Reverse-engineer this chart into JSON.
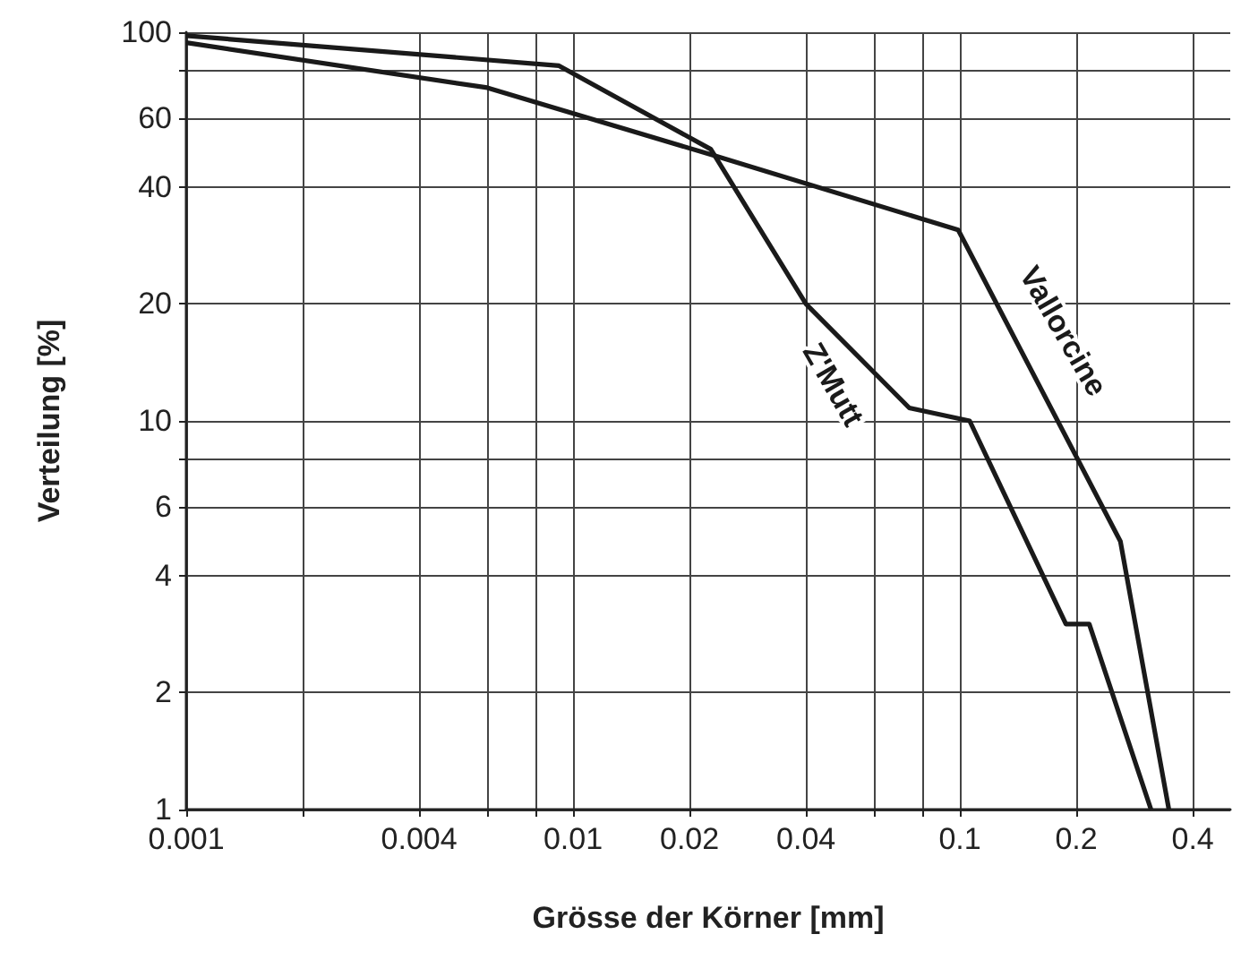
{
  "chart_data": {
    "type": "line",
    "xlabel": "Grösse der Körner [mm]",
    "ylabel": "Verteilung [%]",
    "series": [
      {
        "name": "Z'Mutt",
        "color": "#1a1a1a",
        "x": [
          0.001,
          0.0092,
          0.0227,
          0.04,
          0.074,
          0.106,
          0.188,
          0.216,
          0.312
        ],
        "values": [
          98,
          82,
          50,
          20,
          10.8,
          10,
          3,
          3,
          1
        ]
      },
      {
        "name": "Vallorcine",
        "color": "#1a1a1a",
        "x": [
          0.001,
          0.006,
          0.0234,
          0.099,
          0.26,
          0.347
        ],
        "values": [
          94,
          72,
          48,
          31,
          4.9,
          1
        ]
      }
    ],
    "xlim": [
      0.001,
      0.5
    ],
    "ylim": [
      1,
      100
    ],
    "xticks": [
      0.001,
      {
        "value": 0.002,
        "label": null
      },
      0.004,
      {
        "value": 0.006,
        "label": null
      },
      {
        "value": 0.008,
        "label": null
      },
      0.01,
      0.02,
      0.04,
      {
        "value": 0.06,
        "label": null
      },
      {
        "value": 0.08,
        "label": null
      },
      0.1,
      0.2,
      0.4
    ],
    "yticks": [
      1,
      2,
      4,
      6,
      {
        "value": 8,
        "label": null
      },
      10,
      20,
      40,
      60,
      {
        "value": 80,
        "label": null
      },
      100
    ],
    "log": "xy",
    "grid": true,
    "legend": false,
    "marker": "none",
    "line_style": "solid"
  }
}
